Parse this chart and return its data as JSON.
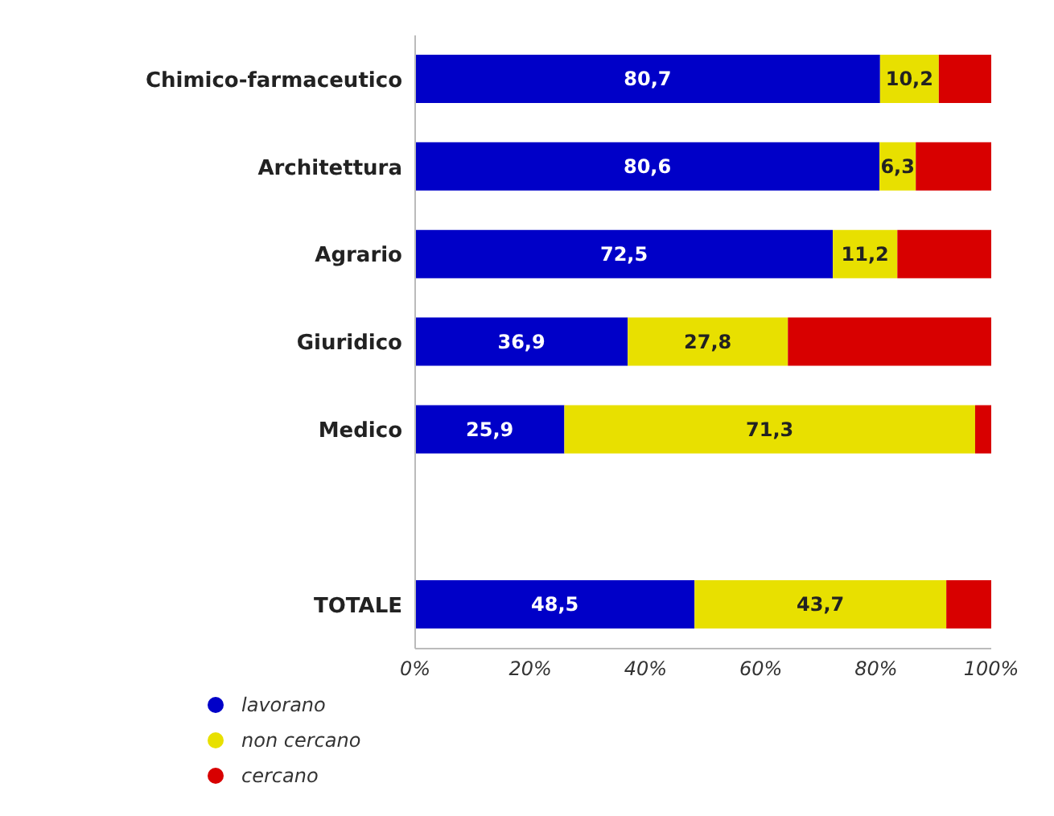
{
  "chart_data": {
    "type": "bar",
    "orientation": "horizontal",
    "stacked": true,
    "categories": [
      "Chimico-farmaceutico",
      "Architettura",
      "Agrario",
      "Giuridico",
      "Medico",
      null,
      "TOTALE"
    ],
    "series": [
      {
        "name": "lavorano",
        "color": "#0000c8",
        "values": [
          80.7,
          80.6,
          72.5,
          36.9,
          25.9,
          null,
          48.5
        ],
        "value_labels": [
          "80,7",
          "80,6",
          "72,5",
          "36,9",
          "25,9",
          null,
          "48,5"
        ]
      },
      {
        "name": "non cercano",
        "color": "#e8e000",
        "values": [
          10.2,
          6.3,
          11.2,
          27.8,
          71.3,
          null,
          43.7
        ],
        "value_labels": [
          "10,2",
          "6,3",
          "11,2",
          "27,8",
          "71,3",
          null,
          "43,7"
        ]
      },
      {
        "name": "cercano",
        "color": "#d80000",
        "values": [
          9.1,
          13.1,
          16.3,
          35.3,
          2.8,
          null,
          7.8
        ]
      }
    ],
    "xlim": [
      0,
      100
    ],
    "xticks": [
      {
        "value": 0,
        "label": "0%"
      },
      {
        "value": 20,
        "label": "20%"
      },
      {
        "value": 40,
        "label": "40%"
      },
      {
        "value": 60,
        "label": "60%"
      },
      {
        "value": 80,
        "label": "80%"
      },
      {
        "value": 100,
        "label": "100%"
      }
    ],
    "grid": false,
    "legend": "bottom left",
    "marker": "circle"
  }
}
